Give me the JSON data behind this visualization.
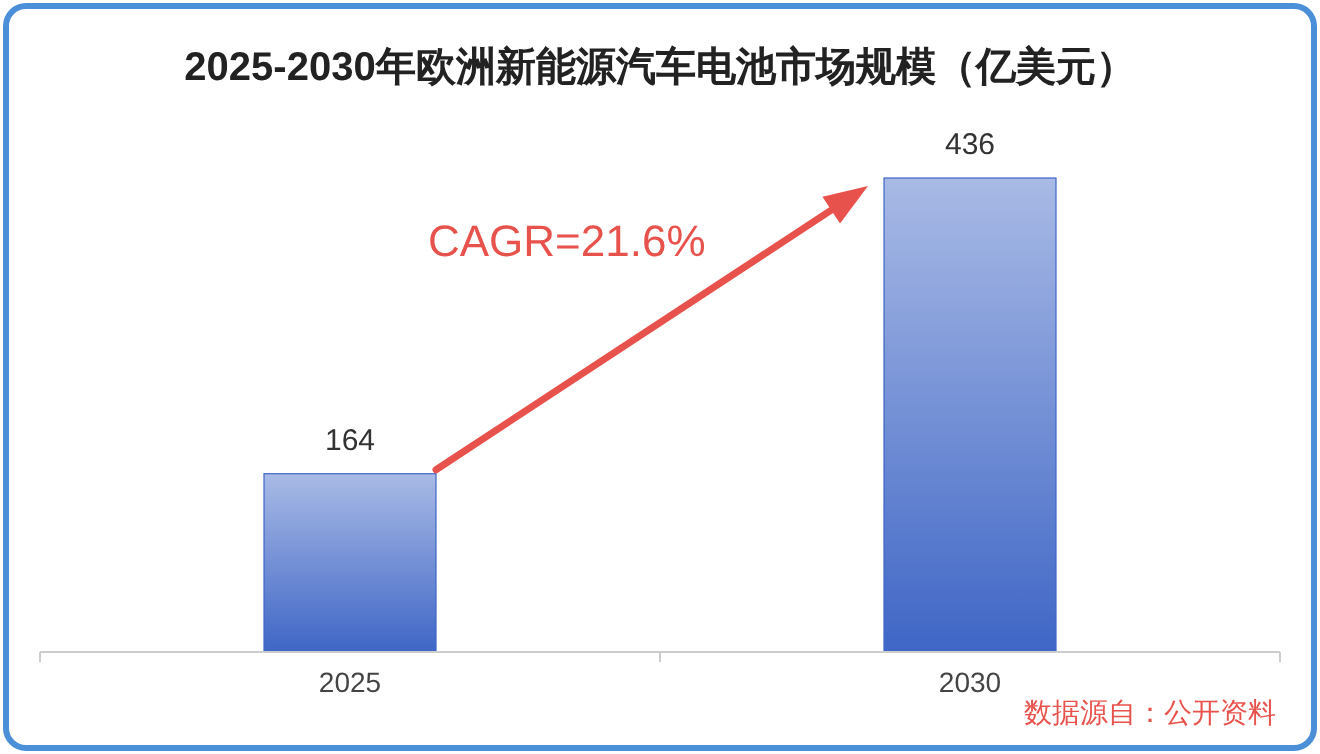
{
  "chart_data": {
    "type": "bar",
    "title": "2025-2030年欧洲新能源汽车电池市场规模（亿美元）",
    "categories": [
      "2025",
      "2030"
    ],
    "values": [
      164,
      436
    ],
    "color": "#3f66c6",
    "data_labels": true,
    "annotations": [
      "CAGR=21.6%",
      "数据源自：公开资料"
    ]
  }
}
